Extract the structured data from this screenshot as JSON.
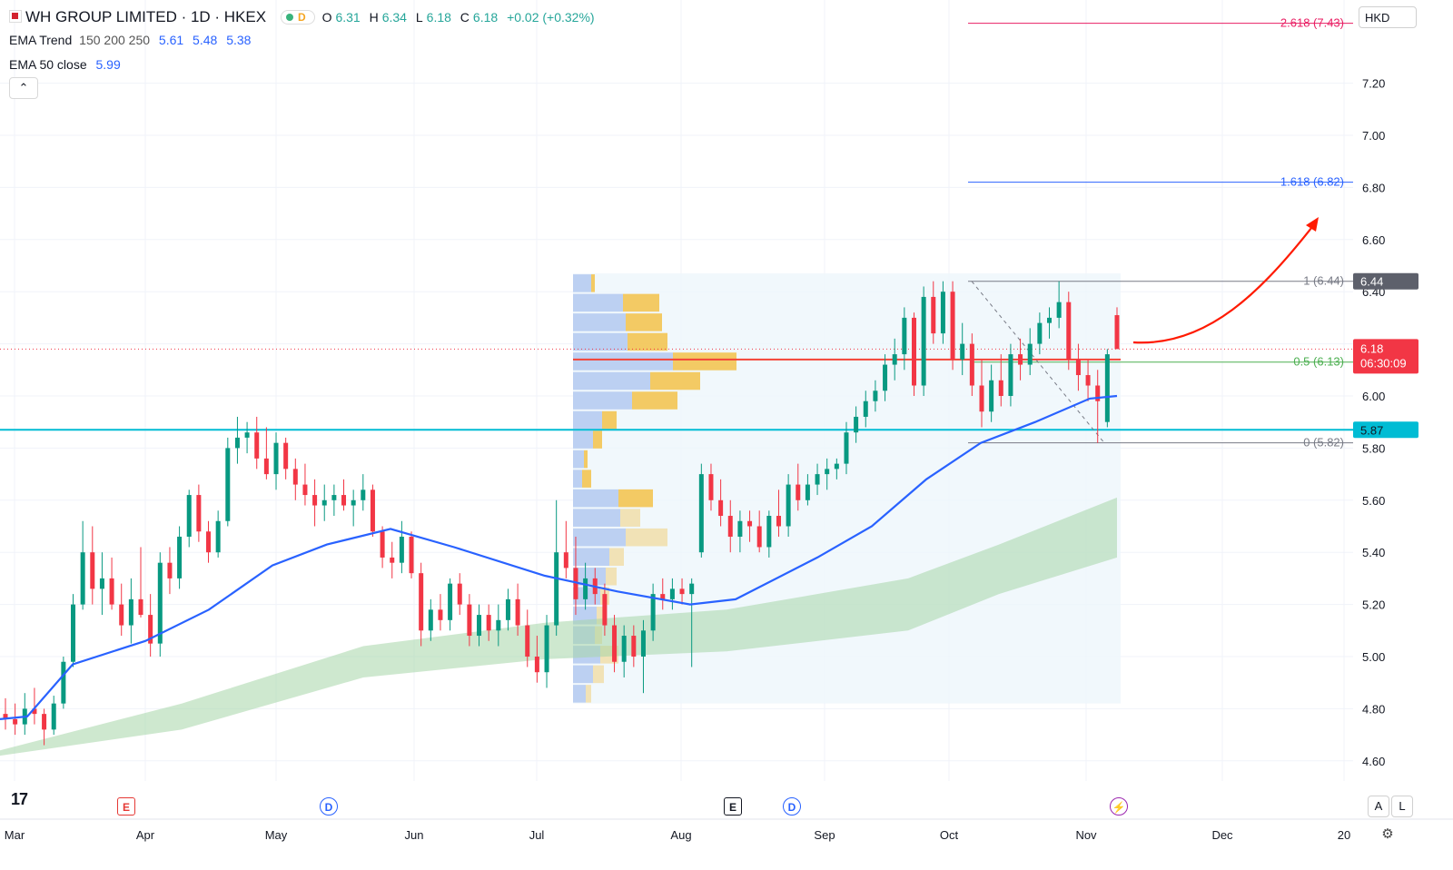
{
  "header": {
    "symbol": "WH GROUP LIMITED · 1D · HKEX",
    "status_letter": "D",
    "open_label": "O",
    "open": "6.31",
    "high_label": "H",
    "high": "6.34",
    "low_label": "L",
    "low": "6.18",
    "close_label": "C",
    "close": "6.18",
    "change": "+0.02 (+0.32%)"
  },
  "indicators": {
    "ema_trend_label": "EMA Trend",
    "ema_trend_params": "150 200 250",
    "ema_trend_values": [
      "5.61",
      "5.48",
      "5.38"
    ],
    "ema50_label": "EMA 50 close",
    "ema50_value": "5.99"
  },
  "controls": {
    "collapse_icon": "chevron-up-icon",
    "currency": "HKD",
    "scale_auto": "A",
    "scale_log": "L",
    "settings_icon": "gear-icon"
  },
  "price_axis": {
    "ticks": [
      "7.20",
      "7.00",
      "6.80",
      "6.60",
      "6.40",
      "6.00",
      "5.80",
      "5.60",
      "5.40",
      "5.20",
      "5.00",
      "4.80",
      "4.60"
    ],
    "last_price": "6.18",
    "countdown": "06:30:09",
    "high_tag": "6.44",
    "support_tag": "5.87"
  },
  "time_axis": {
    "labels": [
      "Mar",
      "Apr",
      "May",
      "Jun",
      "Jul",
      "Aug",
      "Sep",
      "Oct",
      "Nov",
      "Dec",
      "20"
    ]
  },
  "fibonacci": {
    "levels": [
      {
        "label": "2.618 (7.43)",
        "ratio": 2.618,
        "price": 7.43,
        "color": "#e91e63"
      },
      {
        "label": "1.618 (6.82)",
        "ratio": 1.618,
        "price": 6.82,
        "color": "#2962ff"
      },
      {
        "label": "1 (6.44)",
        "ratio": 1,
        "price": 6.44,
        "color": "#787b86"
      },
      {
        "label": "0.5 (6.13)",
        "ratio": 0.5,
        "price": 6.13,
        "color": "#4caf50"
      },
      {
        "label": "0 (5.82)",
        "ratio": 0,
        "price": 5.82,
        "color": "#787b86"
      }
    ]
  },
  "events": [
    {
      "kind": "earnings",
      "letter": "E",
      "icon": "earnings-icon"
    },
    {
      "kind": "dividend",
      "letter": "D",
      "icon": "dividend-icon"
    },
    {
      "kind": "earnings",
      "letter": "E",
      "icon": "earnings-icon"
    },
    {
      "kind": "dividend",
      "letter": "D",
      "icon": "dividend-icon"
    },
    {
      "kind": "split",
      "letter": "⚡",
      "icon": "lightning-icon"
    }
  ],
  "colors": {
    "up": "#089981",
    "down": "#f23645",
    "ema50": "#2962ff",
    "ema_band": "#a5d6a7",
    "support": "#00bcd4",
    "poc": "#f44336",
    "arrow": "#ff1a00"
  },
  "chart_data": {
    "type": "candlestick",
    "y_range": [
      4.55,
      7.45
    ],
    "x_range": [
      "Mar",
      "20"
    ],
    "support_line": 5.87,
    "last_price": 6.18,
    "ema50_path": [
      [
        0,
        4.76
      ],
      [
        30,
        4.77
      ],
      [
        80,
        4.97
      ],
      [
        160,
        5.06
      ],
      [
        230,
        5.18
      ],
      [
        300,
        5.35
      ],
      [
        360,
        5.43
      ],
      [
        430,
        5.49
      ],
      [
        500,
        5.42
      ],
      [
        600,
        5.31
      ],
      [
        680,
        5.25
      ],
      [
        760,
        5.2
      ],
      [
        810,
        5.22
      ],
      [
        900,
        5.38
      ],
      [
        960,
        5.5
      ],
      [
        1020,
        5.68
      ],
      [
        1080,
        5.82
      ],
      [
        1140,
        5.9
      ],
      [
        1200,
        5.99
      ],
      [
        1230,
        6.0
      ]
    ],
    "ema_band_upper": [
      [
        0,
        4.64
      ],
      [
        200,
        4.82
      ],
      [
        400,
        5.04
      ],
      [
        600,
        5.13
      ],
      [
        800,
        5.18
      ],
      [
        1000,
        5.3
      ],
      [
        1100,
        5.43
      ],
      [
        1230,
        5.61
      ]
    ],
    "ema_band_lower": [
      [
        0,
        4.62
      ],
      [
        200,
        4.72
      ],
      [
        400,
        4.92
      ],
      [
        600,
        4.99
      ],
      [
        800,
        5.02
      ],
      [
        1000,
        5.1
      ],
      [
        1100,
        5.24
      ],
      [
        1230,
        5.38
      ]
    ],
    "candles": [
      {
        "o": 4.78,
        "h": 4.84,
        "l": 4.72,
        "c": 4.76
      },
      {
        "o": 4.76,
        "h": 4.82,
        "l": 4.7,
        "c": 4.74
      },
      {
        "o": 4.74,
        "h": 4.86,
        "l": 4.7,
        "c": 4.8
      },
      {
        "o": 4.8,
        "h": 4.88,
        "l": 4.74,
        "c": 4.78
      },
      {
        "o": 4.78,
        "h": 4.8,
        "l": 4.66,
        "c": 4.72
      },
      {
        "o": 4.72,
        "h": 4.85,
        "l": 4.7,
        "c": 4.82
      },
      {
        "o": 4.82,
        "h": 5.0,
        "l": 4.8,
        "c": 4.98
      },
      {
        "o": 4.98,
        "h": 5.24,
        "l": 4.96,
        "c": 5.2
      },
      {
        "o": 5.2,
        "h": 5.52,
        "l": 5.18,
        "c": 5.4
      },
      {
        "o": 5.4,
        "h": 5.5,
        "l": 5.2,
        "c": 5.26
      },
      {
        "o": 5.26,
        "h": 5.4,
        "l": 5.16,
        "c": 5.3
      },
      {
        "o": 5.3,
        "h": 5.38,
        "l": 5.18,
        "c": 5.2
      },
      {
        "o": 5.2,
        "h": 5.28,
        "l": 5.08,
        "c": 5.12
      },
      {
        "o": 5.12,
        "h": 5.3,
        "l": 5.05,
        "c": 5.22
      },
      {
        "o": 5.22,
        "h": 5.42,
        "l": 5.15,
        "c": 5.16
      },
      {
        "o": 5.16,
        "h": 5.24,
        "l": 5.0,
        "c": 5.05
      },
      {
        "o": 5.05,
        "h": 5.4,
        "l": 5.0,
        "c": 5.36
      },
      {
        "o": 5.36,
        "h": 5.42,
        "l": 5.24,
        "c": 5.3
      },
      {
        "o": 5.3,
        "h": 5.5,
        "l": 5.26,
        "c": 5.46
      },
      {
        "o": 5.46,
        "h": 5.64,
        "l": 5.42,
        "c": 5.62
      },
      {
        "o": 5.62,
        "h": 5.66,
        "l": 5.44,
        "c": 5.48
      },
      {
        "o": 5.48,
        "h": 5.52,
        "l": 5.36,
        "c": 5.4
      },
      {
        "o": 5.4,
        "h": 5.56,
        "l": 5.38,
        "c": 5.52
      },
      {
        "o": 5.52,
        "h": 5.84,
        "l": 5.5,
        "c": 5.8
      },
      {
        "o": 5.8,
        "h": 5.92,
        "l": 5.74,
        "c": 5.84
      },
      {
        "o": 5.84,
        "h": 5.9,
        "l": 5.78,
        "c": 5.86
      },
      {
        "o": 5.86,
        "h": 5.92,
        "l": 5.72,
        "c": 5.76
      },
      {
        "o": 5.76,
        "h": 5.88,
        "l": 5.68,
        "c": 5.7
      },
      {
        "o": 5.7,
        "h": 5.86,
        "l": 5.64,
        "c": 5.82
      },
      {
        "o": 5.82,
        "h": 5.84,
        "l": 5.68,
        "c": 5.72
      },
      {
        "o": 5.72,
        "h": 5.76,
        "l": 5.6,
        "c": 5.66
      },
      {
        "o": 5.66,
        "h": 5.74,
        "l": 5.58,
        "c": 5.62
      },
      {
        "o": 5.62,
        "h": 5.68,
        "l": 5.5,
        "c": 5.58
      },
      {
        "o": 5.58,
        "h": 5.66,
        "l": 5.52,
        "c": 5.6
      },
      {
        "o": 5.6,
        "h": 5.66,
        "l": 5.54,
        "c": 5.62
      },
      {
        "o": 5.62,
        "h": 5.68,
        "l": 5.56,
        "c": 5.58
      },
      {
        "o": 5.58,
        "h": 5.64,
        "l": 5.5,
        "c": 5.6
      },
      {
        "o": 5.6,
        "h": 5.7,
        "l": 5.56,
        "c": 5.64
      },
      {
        "o": 5.64,
        "h": 5.66,
        "l": 5.46,
        "c": 5.48
      },
      {
        "o": 5.48,
        "h": 5.5,
        "l": 5.34,
        "c": 5.38
      },
      {
        "o": 5.38,
        "h": 5.44,
        "l": 5.3,
        "c": 5.36
      },
      {
        "o": 5.36,
        "h": 5.52,
        "l": 5.32,
        "c": 5.46
      },
      {
        "o": 5.46,
        "h": 5.48,
        "l": 5.3,
        "c": 5.32
      },
      {
        "o": 5.32,
        "h": 5.36,
        "l": 5.04,
        "c": 5.1
      },
      {
        "o": 5.1,
        "h": 5.22,
        "l": 5.06,
        "c": 5.18
      },
      {
        "o": 5.18,
        "h": 5.24,
        "l": 5.1,
        "c": 5.14
      },
      {
        "o": 5.14,
        "h": 5.3,
        "l": 5.1,
        "c": 5.28
      },
      {
        "o": 5.28,
        "h": 5.32,
        "l": 5.16,
        "c": 5.2
      },
      {
        "o": 5.2,
        "h": 5.24,
        "l": 5.04,
        "c": 5.08
      },
      {
        "o": 5.08,
        "h": 5.2,
        "l": 5.04,
        "c": 5.16
      },
      {
        "o": 5.16,
        "h": 5.2,
        "l": 5.06,
        "c": 5.1
      },
      {
        "o": 5.1,
        "h": 5.2,
        "l": 5.04,
        "c": 5.14
      },
      {
        "o": 5.14,
        "h": 5.26,
        "l": 5.1,
        "c": 5.22
      },
      {
        "o": 5.22,
        "h": 5.28,
        "l": 5.08,
        "c": 5.12
      },
      {
        "o": 5.12,
        "h": 5.18,
        "l": 4.96,
        "c": 5.0
      },
      {
        "o": 5.0,
        "h": 5.08,
        "l": 4.9,
        "c": 4.94
      },
      {
        "o": 4.94,
        "h": 5.16,
        "l": 4.88,
        "c": 5.12
      },
      {
        "o": 5.12,
        "h": 5.6,
        "l": 5.08,
        "c": 5.4
      },
      {
        "o": 5.4,
        "h": 5.52,
        "l": 5.3,
        "c": 5.34
      },
      {
        "o": 5.34,
        "h": 5.46,
        "l": 5.16,
        "c": 5.22
      },
      {
        "o": 5.22,
        "h": 5.36,
        "l": 5.18,
        "c": 5.3
      },
      {
        "o": 5.3,
        "h": 5.34,
        "l": 5.2,
        "c": 5.24
      },
      {
        "o": 5.24,
        "h": 5.28,
        "l": 5.08,
        "c": 5.12
      },
      {
        "o": 5.12,
        "h": 5.16,
        "l": 4.94,
        "c": 4.98
      },
      {
        "o": 4.98,
        "h": 5.12,
        "l": 4.92,
        "c": 5.08
      },
      {
        "o": 5.08,
        "h": 5.12,
        "l": 4.96,
        "c": 5.0
      },
      {
        "o": 5.0,
        "h": 5.14,
        "l": 4.86,
        "c": 5.1
      },
      {
        "o": 5.1,
        "h": 5.28,
        "l": 5.06,
        "c": 5.24
      },
      {
        "o": 5.24,
        "h": 5.3,
        "l": 5.18,
        "c": 5.22
      },
      {
        "o": 5.22,
        "h": 5.3,
        "l": 5.18,
        "c": 5.26
      },
      {
        "o": 5.26,
        "h": 5.3,
        "l": 5.2,
        "c": 5.24
      },
      {
        "o": 5.24,
        "h": 5.3,
        "l": 4.96,
        "c": 5.28
      },
      {
        "o": 5.4,
        "h": 5.74,
        "l": 5.38,
        "c": 5.7
      },
      {
        "o": 5.7,
        "h": 5.74,
        "l": 5.56,
        "c": 5.6
      },
      {
        "o": 5.6,
        "h": 5.68,
        "l": 5.5,
        "c": 5.54
      },
      {
        "o": 5.54,
        "h": 5.6,
        "l": 5.4,
        "c": 5.46
      },
      {
        "o": 5.46,
        "h": 5.56,
        "l": 5.4,
        "c": 5.52
      },
      {
        "o": 5.52,
        "h": 5.56,
        "l": 5.44,
        "c": 5.5
      },
      {
        "o": 5.5,
        "h": 5.56,
        "l": 5.4,
        "c": 5.42
      },
      {
        "o": 5.42,
        "h": 5.56,
        "l": 5.38,
        "c": 5.54
      },
      {
        "o": 5.54,
        "h": 5.64,
        "l": 5.46,
        "c": 5.5
      },
      {
        "o": 5.5,
        "h": 5.7,
        "l": 5.46,
        "c": 5.66
      },
      {
        "o": 5.66,
        "h": 5.74,
        "l": 5.56,
        "c": 5.6
      },
      {
        "o": 5.6,
        "h": 5.7,
        "l": 5.58,
        "c": 5.66
      },
      {
        "o": 5.66,
        "h": 5.74,
        "l": 5.62,
        "c": 5.7
      },
      {
        "o": 5.7,
        "h": 5.76,
        "l": 5.64,
        "c": 5.72
      },
      {
        "o": 5.72,
        "h": 5.76,
        "l": 5.68,
        "c": 5.74
      },
      {
        "o": 5.74,
        "h": 5.9,
        "l": 5.7,
        "c": 5.86
      },
      {
        "o": 5.86,
        "h": 5.96,
        "l": 5.82,
        "c": 5.92
      },
      {
        "o": 5.92,
        "h": 6.02,
        "l": 5.88,
        "c": 5.98
      },
      {
        "o": 5.98,
        "h": 6.06,
        "l": 5.94,
        "c": 6.02
      },
      {
        "o": 6.02,
        "h": 6.16,
        "l": 5.98,
        "c": 6.12
      },
      {
        "o": 6.12,
        "h": 6.22,
        "l": 6.06,
        "c": 6.16
      },
      {
        "o": 6.16,
        "h": 6.34,
        "l": 6.1,
        "c": 6.3
      },
      {
        "o": 6.3,
        "h": 6.32,
        "l": 6.0,
        "c": 6.04
      },
      {
        "o": 6.04,
        "h": 6.42,
        "l": 6.0,
        "c": 6.38
      },
      {
        "o": 6.38,
        "h": 6.44,
        "l": 6.2,
        "c": 6.24
      },
      {
        "o": 6.24,
        "h": 6.44,
        "l": 6.2,
        "c": 6.4
      },
      {
        "o": 6.4,
        "h": 6.44,
        "l": 6.1,
        "c": 6.14
      },
      {
        "o": 6.14,
        "h": 6.28,
        "l": 6.08,
        "c": 6.2
      },
      {
        "o": 6.2,
        "h": 6.24,
        "l": 6.0,
        "c": 6.04
      },
      {
        "o": 6.04,
        "h": 6.14,
        "l": 5.88,
        "c": 5.94
      },
      {
        "o": 5.94,
        "h": 6.12,
        "l": 5.9,
        "c": 6.06
      },
      {
        "o": 6.06,
        "h": 6.16,
        "l": 5.96,
        "c": 6.0
      },
      {
        "o": 6.0,
        "h": 6.2,
        "l": 5.96,
        "c": 6.16
      },
      {
        "o": 6.16,
        "h": 6.22,
        "l": 6.06,
        "c": 6.12
      },
      {
        "o": 6.12,
        "h": 6.26,
        "l": 6.08,
        "c": 6.2
      },
      {
        "o": 6.2,
        "h": 6.32,
        "l": 6.16,
        "c": 6.28
      },
      {
        "o": 6.28,
        "h": 6.34,
        "l": 6.22,
        "c": 6.3
      },
      {
        "o": 6.3,
        "h": 6.44,
        "l": 6.26,
        "c": 6.36
      },
      {
        "o": 6.36,
        "h": 6.4,
        "l": 6.1,
        "c": 6.14
      },
      {
        "o": 6.14,
        "h": 6.2,
        "l": 6.02,
        "c": 6.08
      },
      {
        "o": 6.08,
        "h": 6.14,
        "l": 5.98,
        "c": 6.04
      },
      {
        "o": 6.04,
        "h": 6.1,
        "l": 5.82,
        "c": 5.98
      },
      {
        "o": 5.9,
        "h": 6.18,
        "l": 5.88,
        "c": 6.16
      },
      {
        "o": 6.31,
        "h": 6.34,
        "l": 6.18,
        "c": 6.18
      }
    ]
  }
}
